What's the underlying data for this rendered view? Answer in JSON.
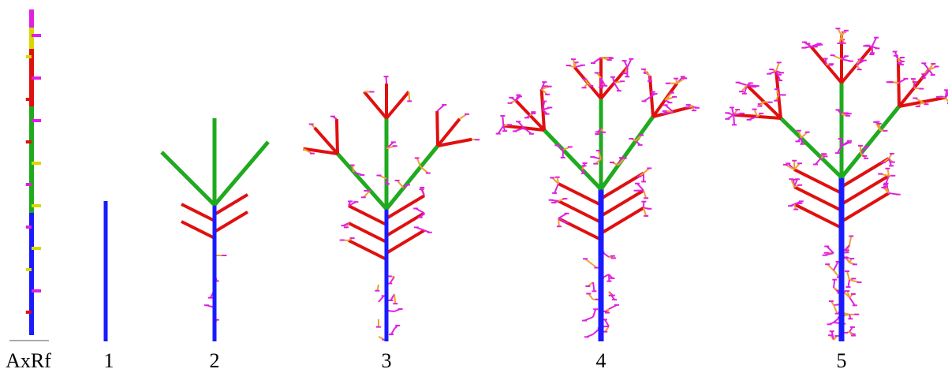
{
  "labels": {
    "reference": "AxRf",
    "stages": [
      "1",
      "2",
      "3",
      "4",
      "5"
    ]
  }
}
